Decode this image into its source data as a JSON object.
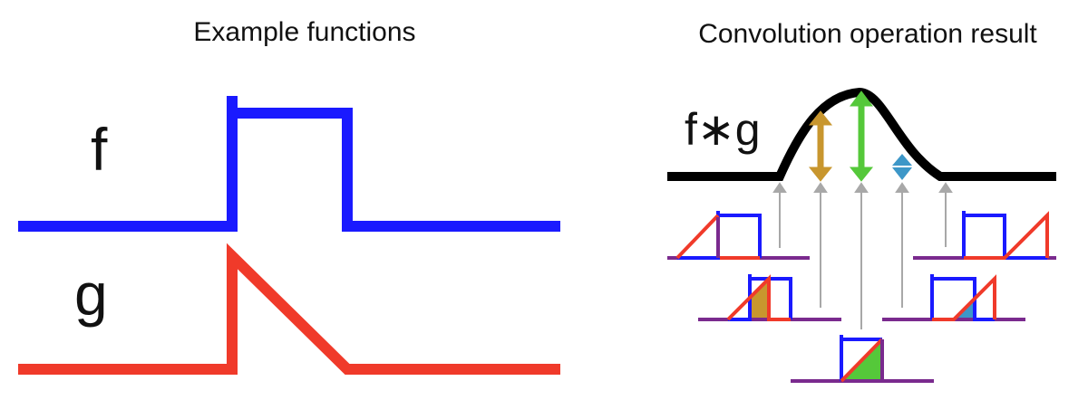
{
  "left_panel": {
    "title": "Example functions",
    "f_label": "f",
    "g_label": "g"
  },
  "right_panel": {
    "title": "Convolution operation result",
    "result_label": "f∗g"
  },
  "colors": {
    "f": "#1a1aff",
    "g": "#f03a2a",
    "result": "#000000",
    "overlap_line": "#7a2a8e",
    "pointer_arrow": "#a8a8a8",
    "partial_overlap_area": "#c8962e",
    "full_overlap_area": "#55c83a",
    "small_overlap_area": "#3d97c8"
  }
}
